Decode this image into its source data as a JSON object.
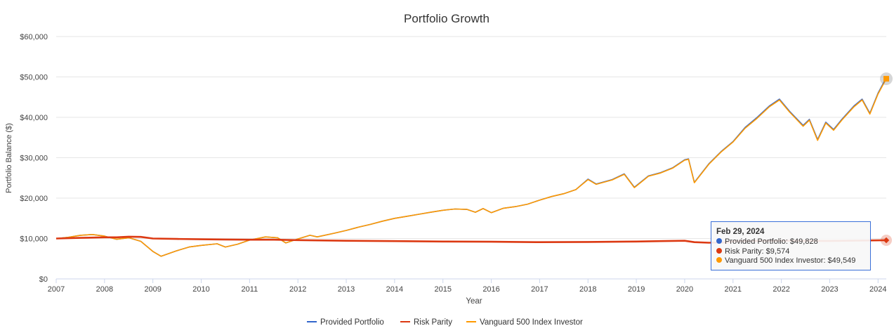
{
  "chart_data": {
    "type": "line",
    "title": "Portfolio Growth",
    "xlabel": "Year",
    "ylabel": "Portfolio Balance ($)",
    "xlim": [
      2007,
      2024.17
    ],
    "ylim": [
      0,
      60000
    ],
    "y_ticks": [
      "$0",
      "$10,000",
      "$20,000",
      "$30,000",
      "$40,000",
      "$50,000",
      "$60,000"
    ],
    "y_tick_values": [
      0,
      10000,
      20000,
      30000,
      40000,
      50000,
      60000
    ],
    "x_ticks": [
      "2007",
      "2008",
      "2009",
      "2010",
      "2011",
      "2012",
      "2013",
      "2014",
      "2015",
      "2016",
      "2017",
      "2018",
      "2019",
      "2020",
      "2021",
      "2022",
      "2023",
      "2024"
    ],
    "x_tick_values": [
      2007,
      2008,
      2009,
      2010,
      2011,
      2012,
      2013,
      2014,
      2015,
      2016,
      2017,
      2018,
      2019,
      2020,
      2021,
      2022,
      2023,
      2024
    ],
    "grid": "horizontal",
    "legend_position": "bottom",
    "series": [
      {
        "name": "Provided Portfolio",
        "color": "#3366cc",
        "points": [
          [
            2007.0,
            10000
          ],
          [
            2007.25,
            10300
          ],
          [
            2007.5,
            10800
          ],
          [
            2007.75,
            11000
          ],
          [
            2008.0,
            10600
          ],
          [
            2008.25,
            9800
          ],
          [
            2008.5,
            10200
          ],
          [
            2008.75,
            9300
          ],
          [
            2009.0,
            6800
          ],
          [
            2009.17,
            5600
          ],
          [
            2009.5,
            7000
          ],
          [
            2009.75,
            7900
          ],
          [
            2010.0,
            8300
          ],
          [
            2010.33,
            8700
          ],
          [
            2010.5,
            7900
          ],
          [
            2010.75,
            8600
          ],
          [
            2011.0,
            9600
          ],
          [
            2011.33,
            10400
          ],
          [
            2011.58,
            10200
          ],
          [
            2011.75,
            8900
          ],
          [
            2012.0,
            9900
          ],
          [
            2012.25,
            10800
          ],
          [
            2012.4,
            10400
          ],
          [
            2012.75,
            11300
          ],
          [
            2013.0,
            12000
          ],
          [
            2013.25,
            12800
          ],
          [
            2013.5,
            13500
          ],
          [
            2013.75,
            14300
          ],
          [
            2014.0,
            15000
          ],
          [
            2014.25,
            15500
          ],
          [
            2014.5,
            16000
          ],
          [
            2014.75,
            16500
          ],
          [
            2015.0,
            17000
          ],
          [
            2015.25,
            17300
          ],
          [
            2015.5,
            17200
          ],
          [
            2015.67,
            16500
          ],
          [
            2015.83,
            17400
          ],
          [
            2016.0,
            16400
          ],
          [
            2016.25,
            17500
          ],
          [
            2016.5,
            17900
          ],
          [
            2016.75,
            18500
          ],
          [
            2017.0,
            19500
          ],
          [
            2017.25,
            20400
          ],
          [
            2017.5,
            21100
          ],
          [
            2017.75,
            22100
          ],
          [
            2018.0,
            24700
          ],
          [
            2018.17,
            23500
          ],
          [
            2018.5,
            24600
          ],
          [
            2018.75,
            26000
          ],
          [
            2018.96,
            22700
          ],
          [
            2019.25,
            25500
          ],
          [
            2019.5,
            26300
          ],
          [
            2019.75,
            27500
          ],
          [
            2020.0,
            29500
          ],
          [
            2020.08,
            29700
          ],
          [
            2020.2,
            23900
          ],
          [
            2020.5,
            28500
          ],
          [
            2020.75,
            31500
          ],
          [
            2021.0,
            34000
          ],
          [
            2021.25,
            37500
          ],
          [
            2021.5,
            40000
          ],
          [
            2021.75,
            42800
          ],
          [
            2021.96,
            44500
          ],
          [
            2022.17,
            41500
          ],
          [
            2022.45,
            38000
          ],
          [
            2022.58,
            39500
          ],
          [
            2022.75,
            34500
          ],
          [
            2022.92,
            38800
          ],
          [
            2023.08,
            37000
          ],
          [
            2023.25,
            39500
          ],
          [
            2023.5,
            42800
          ],
          [
            2023.67,
            44500
          ],
          [
            2023.83,
            41000
          ],
          [
            2024.0,
            46000
          ],
          [
            2024.17,
            49828
          ]
        ]
      },
      {
        "name": "Risk Parity",
        "color": "#dc3912",
        "points": [
          [
            2007.0,
            10000
          ],
          [
            2007.5,
            10150
          ],
          [
            2008.0,
            10300
          ],
          [
            2008.25,
            10300
          ],
          [
            2008.5,
            10450
          ],
          [
            2008.75,
            10400
          ],
          [
            2009.0,
            10000
          ],
          [
            2009.5,
            9900
          ],
          [
            2010.0,
            9800
          ],
          [
            2010.5,
            9750
          ],
          [
            2011.0,
            9700
          ],
          [
            2011.5,
            9700
          ],
          [
            2012.0,
            9600
          ],
          [
            2013.0,
            9450
          ],
          [
            2014.0,
            9350
          ],
          [
            2015.0,
            9250
          ],
          [
            2016.0,
            9200
          ],
          [
            2017.0,
            9100
          ],
          [
            2018.0,
            9150
          ],
          [
            2019.0,
            9250
          ],
          [
            2019.5,
            9350
          ],
          [
            2020.0,
            9450
          ],
          [
            2020.2,
            9100
          ],
          [
            2020.5,
            8950
          ],
          [
            2020.9,
            9050
          ],
          [
            2021.0,
            9350
          ],
          [
            2021.5,
            9400
          ],
          [
            2022.0,
            9450
          ],
          [
            2023.0,
            9400
          ],
          [
            2024.17,
            9574
          ]
        ]
      },
      {
        "name": "Vanguard 500 Index Investor",
        "color": "#ff9900",
        "points": [
          [
            2007.0,
            10000
          ],
          [
            2007.25,
            10300
          ],
          [
            2007.5,
            10800
          ],
          [
            2007.75,
            11000
          ],
          [
            2008.0,
            10600
          ],
          [
            2008.25,
            9800
          ],
          [
            2008.5,
            10200
          ],
          [
            2008.75,
            9300
          ],
          [
            2009.0,
            6800
          ],
          [
            2009.17,
            5600
          ],
          [
            2009.5,
            7000
          ],
          [
            2009.75,
            7900
          ],
          [
            2010.0,
            8300
          ],
          [
            2010.33,
            8700
          ],
          [
            2010.5,
            7900
          ],
          [
            2010.75,
            8600
          ],
          [
            2011.0,
            9600
          ],
          [
            2011.33,
            10400
          ],
          [
            2011.58,
            10200
          ],
          [
            2011.75,
            8900
          ],
          [
            2012.0,
            9900
          ],
          [
            2012.25,
            10800
          ],
          [
            2012.4,
            10400
          ],
          [
            2012.75,
            11300
          ],
          [
            2013.0,
            12000
          ],
          [
            2013.25,
            12800
          ],
          [
            2013.5,
            13500
          ],
          [
            2013.75,
            14300
          ],
          [
            2014.0,
            15000
          ],
          [
            2014.25,
            15500
          ],
          [
            2014.5,
            16000
          ],
          [
            2014.75,
            16500
          ],
          [
            2015.0,
            17000
          ],
          [
            2015.25,
            17300
          ],
          [
            2015.5,
            17200
          ],
          [
            2015.67,
            16500
          ],
          [
            2015.83,
            17400
          ],
          [
            2016.0,
            16400
          ],
          [
            2016.25,
            17500
          ],
          [
            2016.5,
            17900
          ],
          [
            2016.75,
            18500
          ],
          [
            2017.0,
            19500
          ],
          [
            2017.25,
            20400
          ],
          [
            2017.5,
            21100
          ],
          [
            2017.75,
            22100
          ],
          [
            2018.0,
            24600
          ],
          [
            2018.17,
            23400
          ],
          [
            2018.5,
            24500
          ],
          [
            2018.75,
            25900
          ],
          [
            2018.96,
            22600
          ],
          [
            2019.25,
            25400
          ],
          [
            2019.5,
            26200
          ],
          [
            2019.75,
            27400
          ],
          [
            2020.0,
            29400
          ],
          [
            2020.08,
            29600
          ],
          [
            2020.2,
            23800
          ],
          [
            2020.5,
            28400
          ],
          [
            2020.75,
            31400
          ],
          [
            2021.0,
            33900
          ],
          [
            2021.25,
            37300
          ],
          [
            2021.5,
            39800
          ],
          [
            2021.75,
            42600
          ],
          [
            2021.96,
            44300
          ],
          [
            2022.17,
            41300
          ],
          [
            2022.45,
            37800
          ],
          [
            2022.58,
            39300
          ],
          [
            2022.75,
            34300
          ],
          [
            2022.92,
            38600
          ],
          [
            2023.08,
            36800
          ],
          [
            2023.25,
            39300
          ],
          [
            2023.5,
            42600
          ],
          [
            2023.67,
            44300
          ],
          [
            2023.83,
            40800
          ],
          [
            2024.0,
            45800
          ],
          [
            2024.17,
            49549
          ]
        ]
      }
    ],
    "tooltip": {
      "date": "Feb 29, 2024",
      "rows": [
        {
          "label": "Provided Portfolio: $49,828",
          "color": "#3366cc"
        },
        {
          "label": "Risk Parity: $9,574",
          "color": "#dc3912"
        },
        {
          "label": "Vanguard 500 Index Investor: $49,549",
          "color": "#ff9900"
        }
      ]
    }
  }
}
